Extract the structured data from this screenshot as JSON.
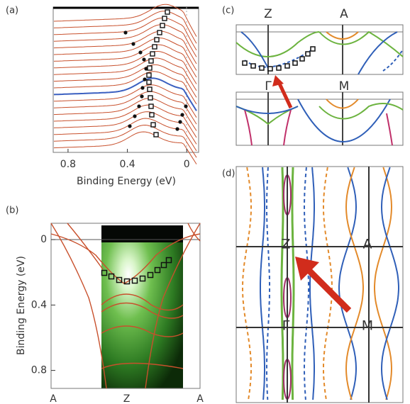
{
  "panels": [
    {
      "label": "(a)",
      "x_label": "Binding Energy (eV)",
      "xlim": [
        0.9,
        -0.08
      ],
      "xticks": [
        0.8,
        0.4,
        0
      ]
    },
    {
      "label": "(b)",
      "y_label": "Binding Energy (eV)",
      "ylim": [
        -0.1,
        0.91
      ],
      "yticks": [
        0,
        0.4,
        0.8
      ],
      "categories": [
        "A",
        "Z",
        "A"
      ]
    },
    {
      "label": "(c)",
      "point_labels": [
        "Z",
        "A",
        "Γ",
        "M"
      ]
    },
    {
      "label": "(d)",
      "point_labels": [
        "Z",
        "A",
        "Γ",
        "M"
      ]
    }
  ]
}
